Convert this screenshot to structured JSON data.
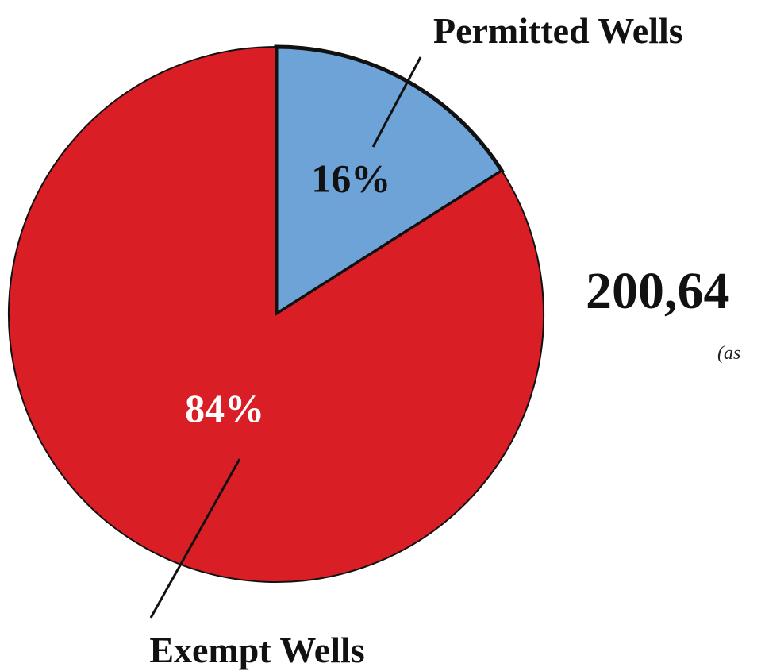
{
  "chart_data": {
    "type": "pie",
    "slices": [
      {
        "label": "Permitted Wells",
        "value": 16,
        "value_label": "16%",
        "color": "#6ea3d8",
        "value_label_color": "#111111"
      },
      {
        "label": "Exempt Wells",
        "value": 84,
        "value_label": "84%",
        "color": "#d91e26",
        "value_label_color": "#ffffff"
      }
    ],
    "total_label": "200,64",
    "note": "(as",
    "slice_outline_color": "#111111"
  }
}
